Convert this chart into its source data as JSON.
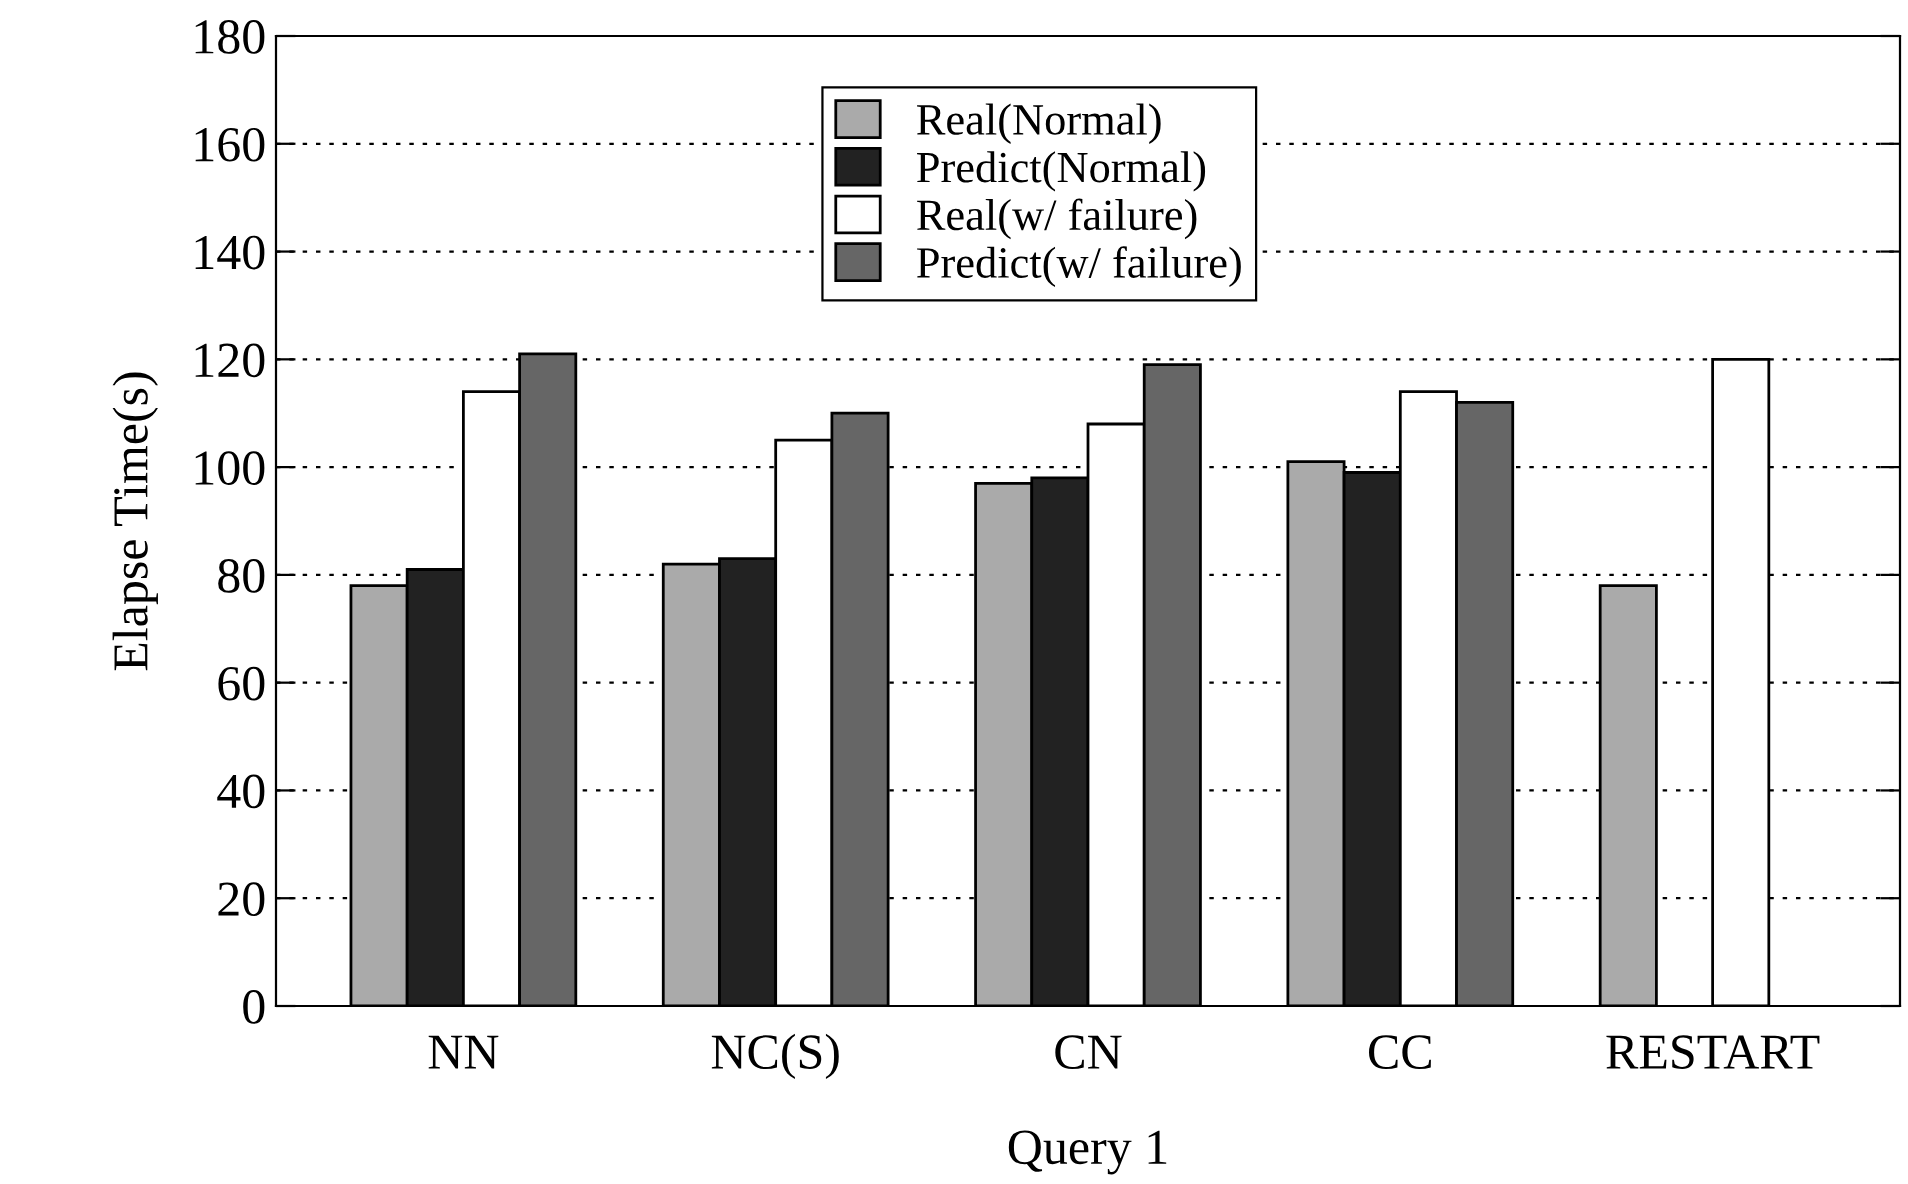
{
  "chart_data": {
    "type": "bar",
    "xlabel": "Query 1",
    "ylabel": "Elapse Time(s)",
    "categories": [
      "NN",
      "NC(S)",
      "CN",
      "CC",
      "RESTART"
    ],
    "series": [
      {
        "name": "Real(Normal)",
        "color": "#aaaaaa",
        "values": [
          78,
          82,
          97,
          101,
          78
        ]
      },
      {
        "name": "Predict(Normal)",
        "color": "#222222",
        "values": [
          81,
          83,
          98,
          99,
          null
        ]
      },
      {
        "name": "Real(w/ failure)",
        "color": "#ffffff",
        "values": [
          114,
          105,
          108,
          114,
          120
        ]
      },
      {
        "name": "Predict(w/ failure)",
        "color": "#666666",
        "values": [
          121,
          110,
          119,
          112,
          null
        ]
      }
    ],
    "ylim": [
      0,
      180
    ],
    "yticks": [
      0,
      20,
      40,
      60,
      80,
      100,
      120,
      140,
      160,
      180
    ],
    "grid": "y",
    "legend": "top"
  }
}
